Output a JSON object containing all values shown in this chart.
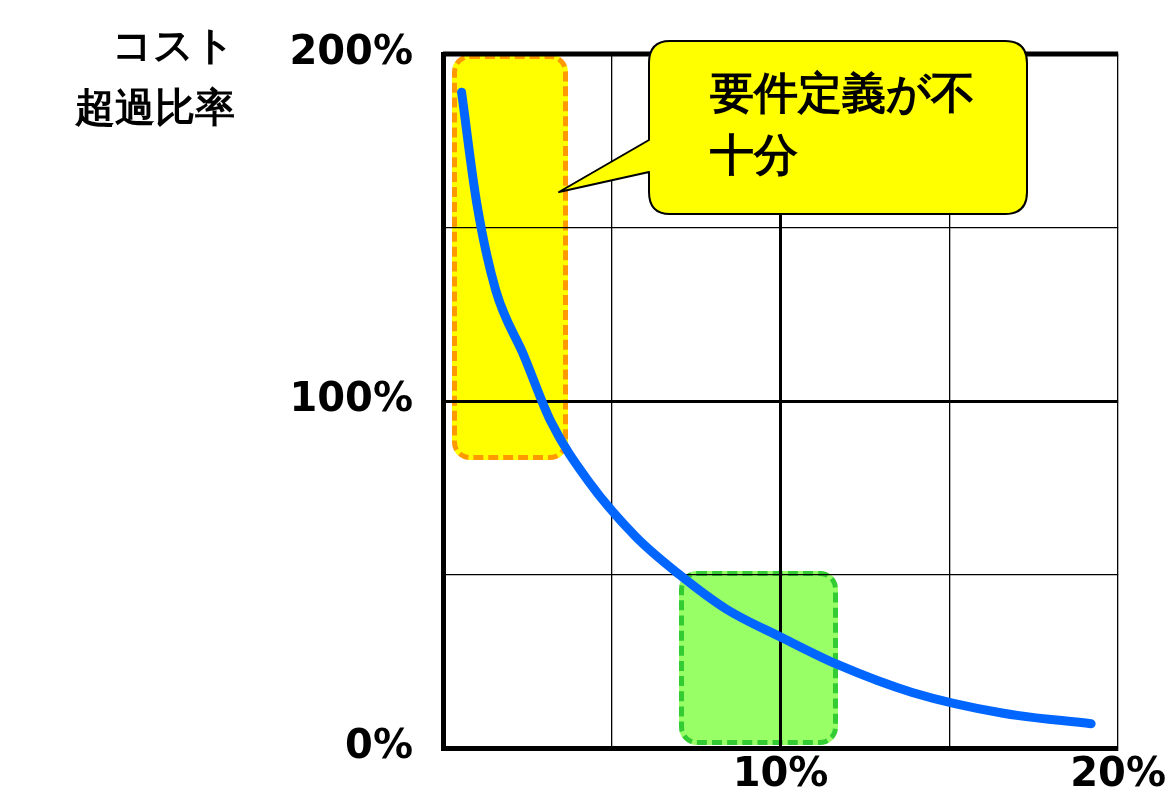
{
  "chart_data": {
    "type": "line",
    "ylabel": "コスト超過比率",
    "annotations": [
      "要件定義が不十分"
    ],
    "x": [
      0.55,
      1.0,
      1.56,
      2.4,
      3.2,
      4.3,
      5.7,
      7.0,
      8.4,
      10.0,
      11.7,
      13.9,
      16.6,
      19.2
    ],
    "series": [
      {
        "color": "#0066ff",
        "values": [
          189,
          157,
          132,
          113,
          94,
          77,
          61,
          50,
          40,
          32,
          24,
          16,
          10,
          7
        ]
      }
    ],
    "xlim": [
      0,
      20
    ],
    "xticks": [
      {
        "value": 5,
        "label": null
      },
      {
        "value": 10,
        "label": "10%"
      },
      {
        "value": 15,
        "label": null
      },
      {
        "value": 20,
        "label": "20%"
      }
    ],
    "ylim": [
      0,
      200
    ],
    "yticks": [
      {
        "value": 0,
        "label": "0%"
      },
      {
        "value": 50,
        "label": null
      },
      {
        "value": 100,
        "label": "100%"
      },
      {
        "value": 150,
        "label": null
      },
      {
        "value": 200,
        "label": "200%"
      }
    ],
    "grid": true,
    "legend": false,
    "marker": "none",
    "line_style": "solid"
  }
}
